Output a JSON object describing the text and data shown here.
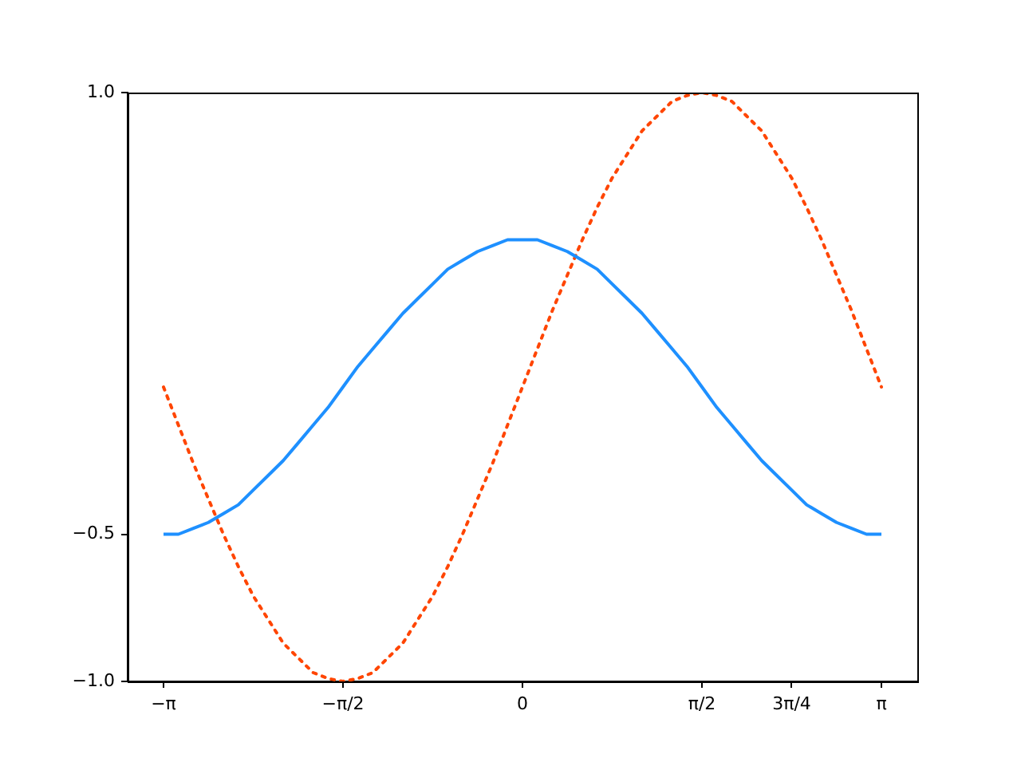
{
  "chart_data": {
    "type": "line",
    "x": [
      -3.142,
      -3.011,
      -2.88,
      -2.749,
      -2.618,
      -2.487,
      -2.356,
      -2.225,
      -2.094,
      -1.963,
      -1.833,
      -1.702,
      -1.571,
      -1.44,
      -1.309,
      -1.178,
      -1.047,
      -0.916,
      -0.785,
      -0.654,
      -0.524,
      -0.393,
      -0.262,
      -0.131,
      0,
      0.131,
      0.262,
      0.393,
      0.524,
      0.654,
      0.785,
      0.916,
      1.047,
      1.178,
      1.309,
      1.44,
      1.571,
      1.702,
      1.833,
      1.963,
      2.094,
      2.225,
      2.356,
      2.487,
      2.618,
      2.749,
      2.88,
      3.011,
      3.142
    ],
    "series": [
      {
        "color": "#1e90ff",
        "line_style": "solid",
        "values": [
          -0.5,
          -0.5,
          -0.48,
          -0.46,
          -0.43,
          -0.4,
          -0.35,
          -0.3,
          -0.25,
          -0.19,
          -0.13,
          -0.07,
          0,
          0.07,
          0.13,
          0.19,
          0.25,
          0.3,
          0.35,
          0.4,
          0.43,
          0.46,
          0.48,
          0.5,
          0.5,
          0.5,
          0.48,
          0.46,
          0.43,
          0.4,
          0.35,
          0.3,
          0.25,
          0.19,
          0.13,
          0.07,
          0,
          -0.07,
          -0.13,
          -0.19,
          -0.25,
          -0.3,
          -0.35,
          -0.4,
          -0.43,
          -0.46,
          -0.48,
          -0.5,
          -0.5
        ]
      },
      {
        "color": "#ff4500",
        "line_style": "dotted",
        "values": [
          0,
          -0.13,
          -0.26,
          -0.38,
          -0.5,
          -0.61,
          -0.71,
          -0.79,
          -0.87,
          -0.92,
          -0.97,
          -0.99,
          -1,
          -0.99,
          -0.97,
          -0.92,
          -0.87,
          -0.79,
          -0.71,
          -0.61,
          -0.5,
          -0.38,
          -0.26,
          -0.13,
          0,
          0.13,
          0.26,
          0.38,
          0.5,
          0.61,
          0.71,
          0.79,
          0.87,
          0.92,
          0.97,
          0.99,
          1,
          0.99,
          0.97,
          0.92,
          0.87,
          0.79,
          0.71,
          0.61,
          0.5,
          0.38,
          0.26,
          0.13,
          0
        ]
      }
    ],
    "xlim": [
      -3.456,
      3.456
    ],
    "xticks": [
      {
        "value": -3.142,
        "label": "−π"
      },
      {
        "value": -1.571,
        "label": "−π/2"
      },
      0,
      {
        "value": 1.571,
        "label": "π/2"
      },
      {
        "value": 2.356,
        "label": "3π/4"
      },
      {
        "value": 3.142,
        "label": "π"
      }
    ],
    "ylim": [
      -1,
      1
    ],
    "yticks": [
      {
        "value": -1,
        "label": "−1.0"
      },
      {
        "value": -0.5,
        "label": "−0.5"
      },
      {
        "value": 1,
        "label": "1.0"
      }
    ],
    "grid": false,
    "legend": false,
    "marker": "none"
  }
}
